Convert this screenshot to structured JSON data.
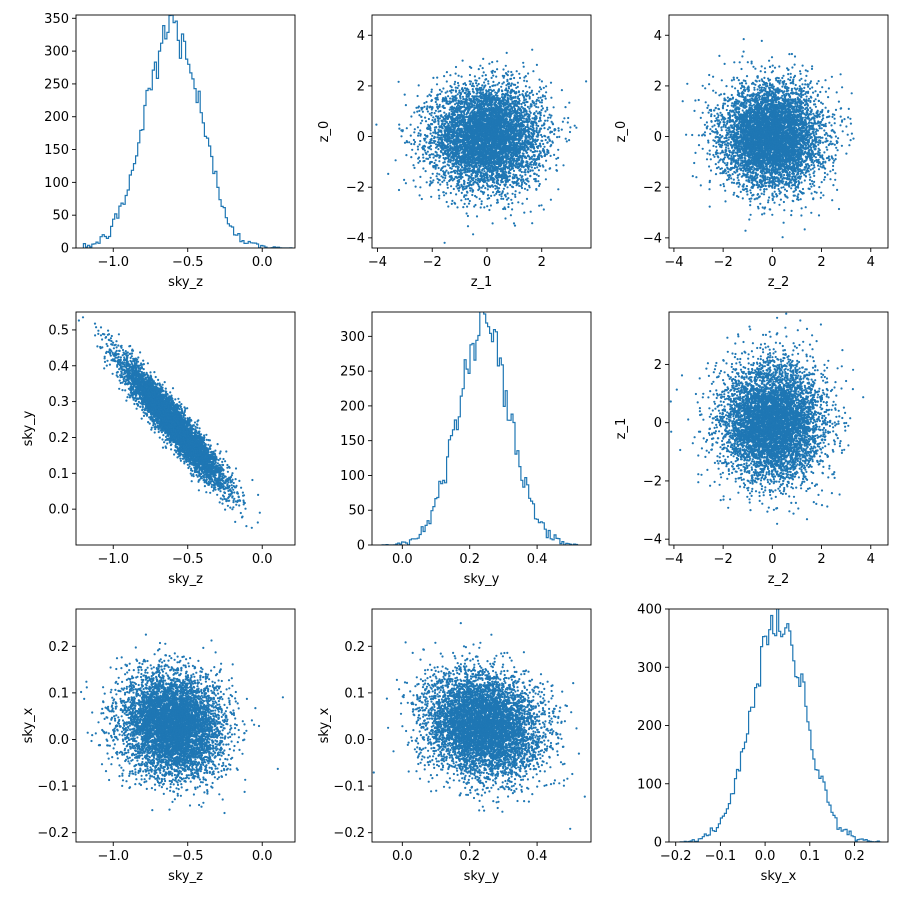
{
  "figure": {
    "background": "#ffffff",
    "series_color": "#1f77b4"
  },
  "chart_data": [
    {
      "type": "histogram",
      "panel": "row1-col1",
      "xlabel": "sky_z",
      "ylabel": "",
      "xlim": [
        -1.25,
        0.22
      ],
      "ylim": [
        0,
        355
      ],
      "xticks": [
        -1.0,
        -0.5,
        0.0
      ],
      "xtick_labels": [
        "−1.0",
        "−0.5",
        "0.0"
      ],
      "yticks": [
        0,
        50,
        100,
        150,
        200,
        250,
        300,
        350
      ],
      "ytick_labels": [
        "0",
        "50",
        "100",
        "150",
        "200",
        "250",
        "300",
        "350"
      ],
      "peak_x": -0.6,
      "peak_count": 338,
      "support": [
        -1.2,
        0.2
      ],
      "bins": 100
    },
    {
      "type": "scatter",
      "panel": "row1-col2",
      "xlabel": "z_1",
      "ylabel": "z_0",
      "xlim": [
        -4.2,
        3.8
      ],
      "ylim": [
        -4.4,
        4.8
      ],
      "xticks": [
        -4,
        -2,
        0,
        2
      ],
      "xtick_labels": [
        "−4",
        "−2",
        "0",
        "2"
      ],
      "yticks": [
        -4,
        -2,
        0,
        2,
        4
      ],
      "ytick_labels": [
        "−4",
        "−2",
        "0",
        "2",
        "4"
      ],
      "x_mean": 0.0,
      "x_std": 1.0,
      "y_mean": 0.0,
      "y_std": 1.0,
      "correlation": 0.0
    },
    {
      "type": "scatter",
      "panel": "row1-col3",
      "xlabel": "z_2",
      "ylabel": "z_0",
      "xlim": [
        -4.2,
        4.7
      ],
      "ylim": [
        -4.4,
        4.8
      ],
      "xticks": [
        -4,
        -2,
        0,
        2,
        4
      ],
      "xtick_labels": [
        "−4",
        "−2",
        "0",
        "2",
        "4"
      ],
      "yticks": [
        -4,
        -2,
        0,
        2,
        4
      ],
      "ytick_labels": [
        "−4",
        "−2",
        "0",
        "2",
        "4"
      ],
      "x_mean": 0.0,
      "x_std": 1.0,
      "y_mean": 0.0,
      "y_std": 1.0,
      "correlation": 0.0
    },
    {
      "type": "scatter",
      "panel": "row2-col1",
      "xlabel": "sky_z",
      "ylabel": "sky_y",
      "xlim": [
        -1.25,
        0.22
      ],
      "ylim": [
        -0.1,
        0.55
      ],
      "xticks": [
        -1.0,
        -0.5,
        0.0
      ],
      "xtick_labels": [
        "−1.0",
        "−0.5",
        "0.0"
      ],
      "yticks": [
        0.0,
        0.1,
        0.2,
        0.3,
        0.4,
        0.5
      ],
      "ytick_labels": [
        "0.0",
        "0.1",
        "0.2",
        "0.3",
        "0.4",
        "0.5"
      ],
      "x_mean": -0.6,
      "x_std": 0.17,
      "y_mean": 0.24,
      "y_std": 0.085,
      "correlation": -0.94
    },
    {
      "type": "histogram",
      "panel": "row2-col2",
      "xlabel": "sky_y",
      "ylabel": "",
      "xlim": [
        -0.09,
        0.56
      ],
      "ylim": [
        0,
        335
      ],
      "xticks": [
        0.0,
        0.2,
        0.4
      ],
      "xtick_labels": [
        "0.0",
        "0.2",
        "0.4"
      ],
      "yticks": [
        0,
        50,
        100,
        150,
        200,
        250,
        300
      ],
      "ytick_labels": [
        "0",
        "50",
        "100",
        "150",
        "200",
        "250",
        "300"
      ],
      "peak_x": 0.24,
      "peak_count": 320,
      "support": [
        -0.06,
        0.52
      ],
      "bins": 100
    },
    {
      "type": "scatter",
      "panel": "row2-col3",
      "xlabel": "z_2",
      "ylabel": "z_1",
      "xlim": [
        -4.2,
        4.7
      ],
      "ylim": [
        -4.2,
        3.8
      ],
      "xticks": [
        -4,
        -2,
        0,
        2,
        4
      ],
      "xtick_labels": [
        "−4",
        "−2",
        "0",
        "2",
        "4"
      ],
      "yticks": [
        -4,
        -2,
        0,
        2
      ],
      "ytick_labels": [
        "−4",
        "−2",
        "0",
        "2"
      ],
      "x_mean": 0.0,
      "x_std": 1.0,
      "y_mean": 0.0,
      "y_std": 1.0,
      "correlation": 0.0
    },
    {
      "type": "scatter",
      "panel": "row3-col1",
      "xlabel": "sky_z",
      "ylabel": "sky_x",
      "xlim": [
        -1.25,
        0.22
      ],
      "ylim": [
        -0.22,
        0.28
      ],
      "xticks": [
        -1.0,
        -0.5,
        0.0
      ],
      "xtick_labels": [
        "−1.0",
        "−0.5",
        "0.0"
      ],
      "yticks": [
        -0.2,
        -0.1,
        0.0,
        0.1,
        0.2
      ],
      "ytick_labels": [
        "−0.2",
        "−0.1",
        "0.0",
        "0.1",
        "0.2"
      ],
      "x_mean": -0.6,
      "x_std": 0.17,
      "y_mean": 0.03,
      "y_std": 0.055,
      "correlation": -0.1
    },
    {
      "type": "scatter",
      "panel": "row3-col2",
      "xlabel": "sky_y",
      "ylabel": "sky_x",
      "xlim": [
        -0.09,
        0.56
      ],
      "ylim": [
        -0.22,
        0.28
      ],
      "xticks": [
        0.0,
        0.2,
        0.4
      ],
      "xtick_labels": [
        "0.0",
        "0.2",
        "0.4"
      ],
      "yticks": [
        -0.2,
        -0.1,
        0.0,
        0.1,
        0.2
      ],
      "ytick_labels": [
        "−0.2",
        "−0.1",
        "0.0",
        "0.1",
        "0.2"
      ],
      "x_mean": 0.24,
      "x_std": 0.085,
      "y_mean": 0.03,
      "y_std": 0.055,
      "correlation": -0.15
    },
    {
      "type": "histogram",
      "panel": "row3-col3",
      "xlabel": "sky_x",
      "ylabel": "",
      "xlim": [
        -0.215,
        0.275
      ],
      "ylim": [
        0,
        400
      ],
      "xticks": [
        -0.2,
        -0.1,
        0.0,
        0.1,
        0.2
      ],
      "xtick_labels": [
        "−0.2",
        "−0.1",
        "0.0",
        "0.1",
        "0.2"
      ],
      "yticks": [
        0,
        100,
        200,
        300,
        400
      ],
      "ytick_labels": [
        "0",
        "100",
        "200",
        "300",
        "400"
      ],
      "peak_x": 0.03,
      "peak_count": 380,
      "support": [
        -0.19,
        0.26
      ],
      "bins": 100
    }
  ]
}
